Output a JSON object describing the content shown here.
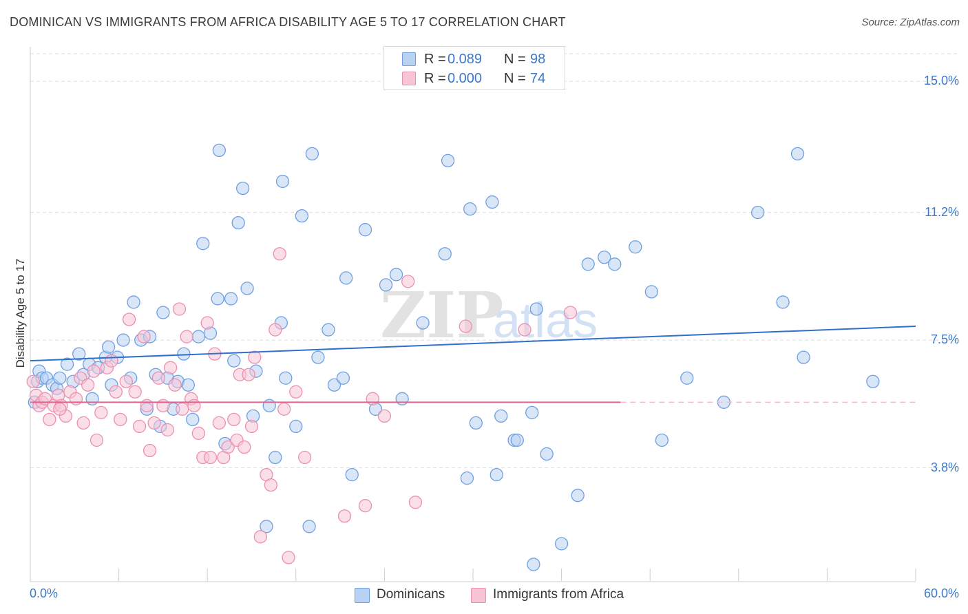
{
  "title": "DOMINICAN VS IMMIGRANTS FROM AFRICA DISABILITY AGE 5 TO 17 CORRELATION CHART",
  "source": "Source: ZipAtlas.com",
  "watermark": {
    "zip": "ZIP",
    "atlas": "atlas"
  },
  "legend_top": {
    "rows": [
      {
        "r_label": "R =",
        "r_value": "0.089",
        "n_label": "N =",
        "n_value": "98",
        "color": "#a9c8ef"
      },
      {
        "r_label": "R =",
        "r_value": "0.000",
        "n_label": "N =",
        "n_value": "74",
        "color": "#f7bcd0"
      }
    ]
  },
  "legend_bottom": [
    {
      "label": "Dominicans",
      "color": "#a9c8ef"
    },
    {
      "label": "Immigrants from Africa",
      "color": "#f7bcd0"
    }
  ],
  "chart_data": {
    "type": "scatter",
    "title": "DOMINICAN VS IMMIGRANTS FROM AFRICA DISABILITY AGE 5 TO 17 CORRELATION CHART",
    "xlabel": "",
    "ylabel": "Disability Age 5 to 17",
    "xlim": [
      0,
      60
    ],
    "ylim": [
      0.5,
      15.8
    ],
    "x_tick_labels": [
      "0.0%",
      "60.0%"
    ],
    "y_ticks": [
      3.8,
      7.5,
      11.2,
      15.0
    ],
    "y_tick_labels": [
      "3.8%",
      "7.5%",
      "11.2%",
      "15.0%"
    ],
    "grid": "horizontal dashed",
    "legend_position": "top-center",
    "series": [
      {
        "name": "Dominicans",
        "color": "#6f9fe0",
        "fill": "#b9d2f2",
        "trend": {
          "x": [
            0,
            60
          ],
          "y": [
            6.9,
            7.9
          ],
          "color": "#2f6fcd"
        },
        "points": [
          [
            0.3,
            5.7
          ],
          [
            0.5,
            6.3
          ],
          [
            0.6,
            6.6
          ],
          [
            0.8,
            6.4
          ],
          [
            1.1,
            6.4
          ],
          [
            1.5,
            6.2
          ],
          [
            1.8,
            6.1
          ],
          [
            2.0,
            6.4
          ],
          [
            2.5,
            6.8
          ],
          [
            2.9,
            6.3
          ],
          [
            3.3,
            7.1
          ],
          [
            3.6,
            6.5
          ],
          [
            4.0,
            6.8
          ],
          [
            4.2,
            5.8
          ],
          [
            4.6,
            6.7
          ],
          [
            5.1,
            7.0
          ],
          [
            5.3,
            7.3
          ],
          [
            5.5,
            6.2
          ],
          [
            5.9,
            7.0
          ],
          [
            6.3,
            7.5
          ],
          [
            6.8,
            6.4
          ],
          [
            7.0,
            8.6
          ],
          [
            7.5,
            7.5
          ],
          [
            7.9,
            5.5
          ],
          [
            8.1,
            7.6
          ],
          [
            8.5,
            6.5
          ],
          [
            8.8,
            5.0
          ],
          [
            9.0,
            8.3
          ],
          [
            9.3,
            6.4
          ],
          [
            9.7,
            5.5
          ],
          [
            10.0,
            6.3
          ],
          [
            10.4,
            7.1
          ],
          [
            10.7,
            6.2
          ],
          [
            11.0,
            5.2
          ],
          [
            11.4,
            7.6
          ],
          [
            11.7,
            10.3
          ],
          [
            12.2,
            7.7
          ],
          [
            12.7,
            8.7
          ],
          [
            12.8,
            13.0
          ],
          [
            13.2,
            4.5
          ],
          [
            13.6,
            8.7
          ],
          [
            13.8,
            6.9
          ],
          [
            14.1,
            10.9
          ],
          [
            14.4,
            11.9
          ],
          [
            14.7,
            9.0
          ],
          [
            15.1,
            5.3
          ],
          [
            15.3,
            6.6
          ],
          [
            16.0,
            2.1
          ],
          [
            16.2,
            5.6
          ],
          [
            16.6,
            4.1
          ],
          [
            17.0,
            8.0
          ],
          [
            17.1,
            12.1
          ],
          [
            17.3,
            6.4
          ],
          [
            18.0,
            5.0
          ],
          [
            18.4,
            11.1
          ],
          [
            18.9,
            2.1
          ],
          [
            19.1,
            12.9
          ],
          [
            19.5,
            7.0
          ],
          [
            20.2,
            7.8
          ],
          [
            20.6,
            6.2
          ],
          [
            21.2,
            6.4
          ],
          [
            21.4,
            9.3
          ],
          [
            21.8,
            3.6
          ],
          [
            22.7,
            10.7
          ],
          [
            23.4,
            5.5
          ],
          [
            24.1,
            9.1
          ],
          [
            24.8,
            9.4
          ],
          [
            25.2,
            5.8
          ],
          [
            26.6,
            8.0
          ],
          [
            28.1,
            10.0
          ],
          [
            28.3,
            12.7
          ],
          [
            29.6,
            3.5
          ],
          [
            29.8,
            11.3
          ],
          [
            30.2,
            5.1
          ],
          [
            31.3,
            11.5
          ],
          [
            31.6,
            3.6
          ],
          [
            31.9,
            5.3
          ],
          [
            32.8,
            4.6
          ],
          [
            33.0,
            4.6
          ],
          [
            34.0,
            5.4
          ],
          [
            34.3,
            8.4
          ],
          [
            35.0,
            4.2
          ],
          [
            36.0,
            1.6
          ],
          [
            37.1,
            3.0
          ],
          [
            37.8,
            9.7
          ],
          [
            38.9,
            9.9
          ],
          [
            39.6,
            9.7
          ],
          [
            41.0,
            10.2
          ],
          [
            42.1,
            8.9
          ],
          [
            42.8,
            4.6
          ],
          [
            44.5,
            6.4
          ],
          [
            47.0,
            5.7
          ],
          [
            49.3,
            11.2
          ],
          [
            51.0,
            8.6
          ],
          [
            52.0,
            12.9
          ],
          [
            52.4,
            7.0
          ],
          [
            57.1,
            6.3
          ],
          [
            34.1,
            1.0
          ]
        ]
      },
      {
        "name": "Immigrants from Africa",
        "color": "#ec8fb0",
        "fill": "#f7c5d6",
        "trend": {
          "x": [
            0,
            40
          ],
          "y": [
            5.7,
            5.7
          ],
          "color": "#e0628f"
        },
        "points": [
          [
            0.4,
            5.9
          ],
          [
            0.6,
            5.6
          ],
          [
            0.8,
            5.7
          ],
          [
            1.0,
            5.8
          ],
          [
            1.3,
            5.2
          ],
          [
            1.6,
            5.6
          ],
          [
            1.9,
            5.9
          ],
          [
            2.1,
            5.6
          ],
          [
            2.4,
            5.3
          ],
          [
            2.7,
            6.0
          ],
          [
            3.1,
            5.8
          ],
          [
            3.4,
            6.4
          ],
          [
            3.6,
            5.1
          ],
          [
            3.9,
            6.2
          ],
          [
            4.3,
            6.6
          ],
          [
            4.5,
            4.6
          ],
          [
            4.8,
            5.4
          ],
          [
            5.2,
            6.7
          ],
          [
            5.5,
            6.9
          ],
          [
            5.8,
            6.0
          ],
          [
            6.1,
            5.2
          ],
          [
            6.5,
            6.3
          ],
          [
            6.7,
            8.1
          ],
          [
            7.1,
            6.0
          ],
          [
            7.4,
            5.0
          ],
          [
            7.7,
            7.6
          ],
          [
            7.9,
            5.6
          ],
          [
            8.1,
            4.3
          ],
          [
            8.4,
            5.1
          ],
          [
            8.7,
            6.4
          ],
          [
            9.0,
            5.6
          ],
          [
            9.3,
            4.9
          ],
          [
            9.5,
            6.7
          ],
          [
            9.8,
            6.2
          ],
          [
            10.1,
            8.4
          ],
          [
            10.3,
            5.5
          ],
          [
            10.6,
            7.6
          ],
          [
            10.9,
            5.8
          ],
          [
            11.1,
            5.6
          ],
          [
            11.4,
            4.8
          ],
          [
            11.7,
            4.1
          ],
          [
            12.0,
            8.0
          ],
          [
            12.2,
            4.1
          ],
          [
            12.5,
            7.1
          ],
          [
            12.8,
            5.1
          ],
          [
            13.1,
            4.1
          ],
          [
            13.4,
            4.4
          ],
          [
            13.8,
            5.2
          ],
          [
            14.0,
            4.6
          ],
          [
            14.2,
            6.5
          ],
          [
            14.5,
            4.4
          ],
          [
            14.8,
            6.5
          ],
          [
            15.0,
            5.0
          ],
          [
            15.2,
            7.0
          ],
          [
            15.6,
            1.8
          ],
          [
            16.0,
            3.6
          ],
          [
            16.3,
            3.3
          ],
          [
            16.6,
            7.8
          ],
          [
            16.9,
            10.0
          ],
          [
            17.2,
            5.5
          ],
          [
            17.5,
            1.2
          ],
          [
            18.0,
            6.0
          ],
          [
            18.6,
            4.1
          ],
          [
            21.3,
            2.4
          ],
          [
            22.7,
            2.7
          ],
          [
            23.2,
            5.8
          ],
          [
            24.0,
            5.3
          ],
          [
            25.6,
            9.2
          ],
          [
            26.1,
            2.8
          ],
          [
            29.5,
            7.9
          ],
          [
            33.5,
            7.8
          ],
          [
            36.6,
            8.3
          ],
          [
            0.2,
            6.3
          ],
          [
            2.0,
            5.5
          ]
        ]
      }
    ]
  }
}
